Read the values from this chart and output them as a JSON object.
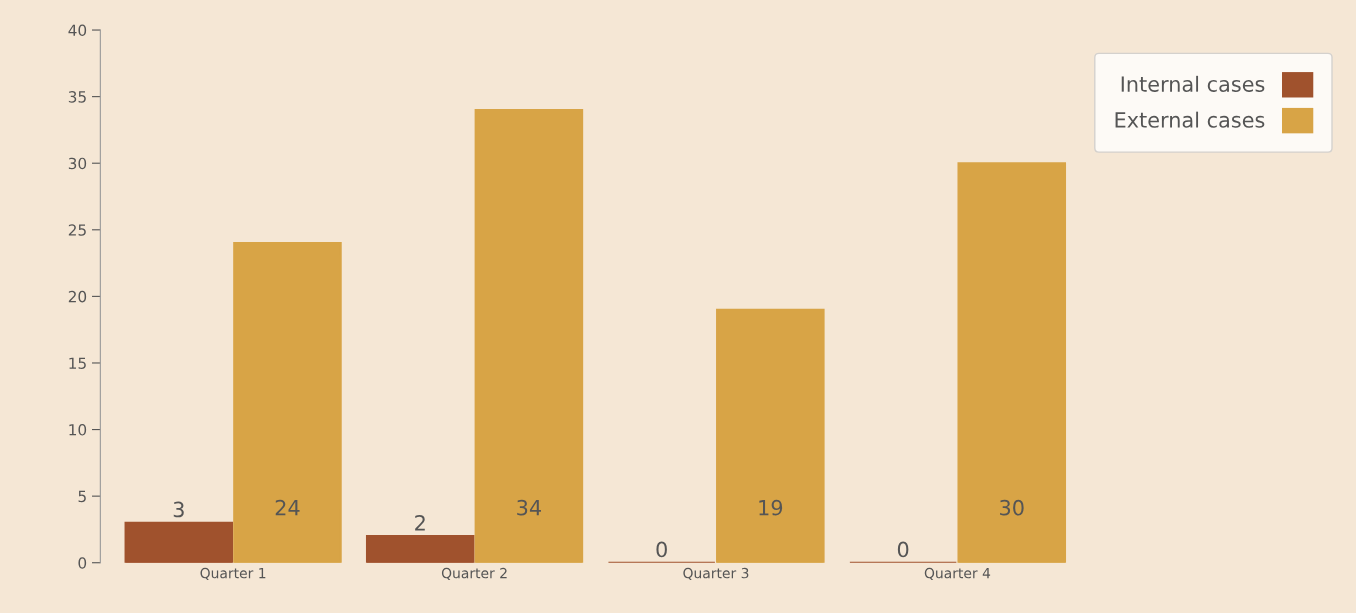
{
  "chart_data": {
    "type": "bar",
    "categories": [
      "Quarter 1",
      "Quarter 2",
      "Quarter 3",
      "Quarter 4"
    ],
    "series": [
      {
        "name": "Internal cases",
        "color": "#a0522d",
        "values": [
          3,
          2,
          0,
          0
        ]
      },
      {
        "name": "External cases",
        "color": "#d8a446",
        "values": [
          24,
          34,
          19,
          30
        ]
      }
    ],
    "ylim": [
      0,
      40
    ],
    "yticks": [
      0,
      5,
      10,
      15,
      20,
      25,
      30,
      35,
      40
    ],
    "grid": false,
    "legend": "top right",
    "data_labels": true
  }
}
